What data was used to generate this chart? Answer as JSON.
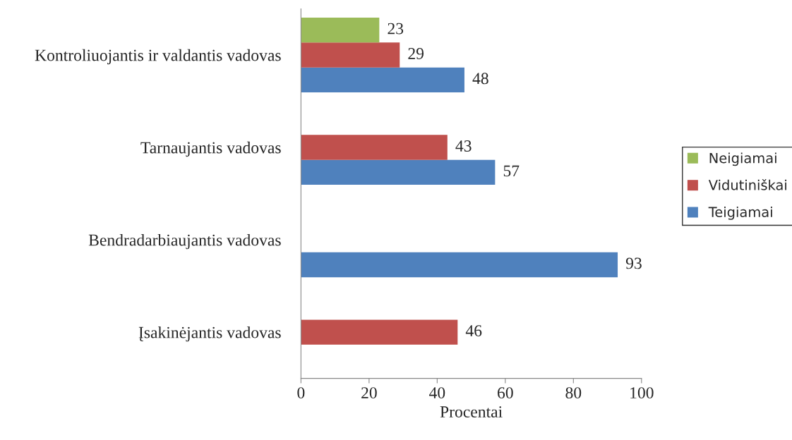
{
  "chart_data": {
    "type": "bar",
    "orientation": "horizontal",
    "xlabel": "Procentai",
    "categories": [
      "Kontroliuojantis ir valdantis vadovas",
      "Tarnaujantis vadovas",
      "Bendradarbiaujantis vadovas",
      "Įsakinėjantis vadovas"
    ],
    "series": [
      {
        "name": "Teigiamai",
        "color": "#4f81bd",
        "values": [
          48,
          57,
          93,
          null
        ]
      },
      {
        "name": "Vidutiniškai",
        "color": "#c0504d",
        "values": [
          29,
          43,
          null,
          46
        ]
      },
      {
        "name": "Neigiamai",
        "color": "#9bbb59",
        "values": [
          23,
          null,
          null,
          null
        ]
      }
    ],
    "xlim": [
      0,
      100
    ],
    "xticks": [
      0,
      20,
      40,
      60,
      80,
      100
    ],
    "data_labels": true,
    "legend": "right",
    "grid": false
  }
}
